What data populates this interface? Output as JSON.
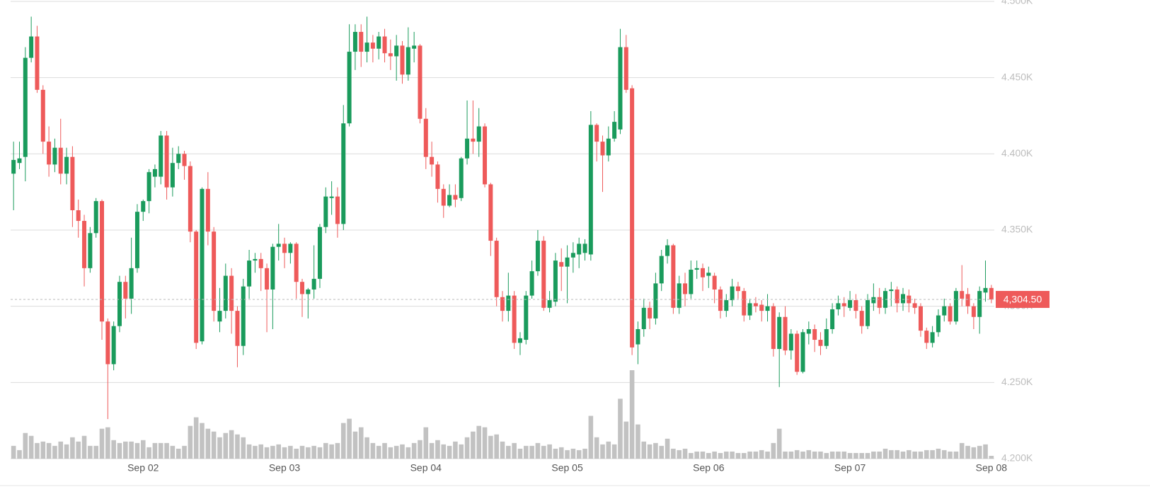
{
  "chart_data": {
    "type": "candlestick",
    "categories": [
      null,
      null,
      null,
      null,
      null,
      null,
      null,
      null,
      null,
      null,
      null,
      null,
      null,
      null,
      null,
      null,
      null,
      null,
      null,
      null,
      null,
      null,
      "Sep 02",
      null,
      null,
      null,
      null,
      null,
      null,
      null,
      null,
      null,
      null,
      null,
      null,
      null,
      null,
      null,
      null,
      null,
      null,
      null,
      null,
      null,
      null,
      null,
      "Sep 03",
      null,
      null,
      null,
      null,
      null,
      null,
      null,
      null,
      null,
      null,
      null,
      null,
      null,
      null,
      null,
      null,
      null,
      null,
      null,
      null,
      null,
      null,
      null,
      "Sep 04",
      null,
      null,
      null,
      null,
      null,
      null,
      null,
      null,
      null,
      null,
      null,
      null,
      null,
      null,
      null,
      null,
      null,
      null,
      null,
      null,
      null,
      null,
      null,
      "Sep 05",
      null,
      null,
      null,
      null,
      null,
      null,
      null,
      null,
      null,
      null,
      null,
      null,
      null,
      null,
      null,
      null,
      null,
      null,
      null,
      null,
      null,
      null,
      null,
      "Sep 06",
      null,
      null,
      null,
      null,
      null,
      null,
      null,
      null,
      null,
      null,
      null,
      null,
      null,
      null,
      null,
      null,
      null,
      null,
      null,
      null,
      null,
      null,
      null,
      "Sep 07",
      null,
      null,
      null,
      null,
      null,
      null,
      null,
      null,
      null,
      null,
      null,
      null,
      null,
      null,
      null,
      null,
      null,
      null,
      null,
      null,
      null,
      null,
      null,
      "Sep 08"
    ],
    "open": [
      4387,
      4394,
      4398,
      4463,
      4477,
      4442,
      4408,
      4393,
      4404,
      4387,
      4398,
      4363,
      4356,
      4325,
      4348,
      4369,
      4290,
      4262,
      4287,
      4316,
      4305,
      4325,
      4362,
      4369,
      4385,
      4385,
      4412,
      4378,
      4394,
      4400,
      4392,
      4349,
      4277,
      4377,
      4349,
      4290,
      4297,
      4320,
      4297,
      4274,
      4313,
      4330,
      4331,
      4325,
      4311,
      4339,
      4341,
      4335,
      4341,
      4316,
      4308,
      4311,
      4318,
      4352,
      4371,
      4372,
      4354,
      4420,
      4467,
      4480,
      4467,
      4473,
      4469,
      4477,
      4466,
      4464,
      4471,
      4452,
      4469,
      4471,
      4423,
      4398,
      4393,
      4377,
      4366,
      4373,
      4371,
      4397,
      4410,
      4408,
      4418,
      4380,
      4343,
      4306,
      4297,
      4307,
      4276,
      4278,
      4307,
      4323,
      4343,
      4299,
      4303,
      4329,
      4326,
      4332,
      4334,
      4335,
      4334,
      4419,
      4408,
      4399,
      4410,
      4416,
      4470,
      4443,
      4275,
      4285,
      4299,
      4292,
      4315,
      4333,
      4340,
      4299,
      4315,
      4308,
      4324,
      4325,
      4320,
      4320,
      4311,
      4297,
      4304,
      4313,
      4310,
      4294,
      4302,
      4301,
      4297,
      4300,
      4272,
      4293,
      4271,
      4282,
      4257,
      4282,
      4285,
      4278,
      4274,
      4285,
      4298,
      4302,
      4299,
      4304,
      4297,
      4287,
      4302,
      4306,
      4299,
      4310,
      4311,
      4302,
      4307,
      4302,
      4300,
      4284,
      4276,
      4283,
      4294,
      4300,
      4290,
      4310,
      4308,
      4300,
      4293,
      4309,
      4312
    ],
    "high": [
      4408,
      4408,
      4470,
      4490,
      4484,
      4445,
      4418,
      4410,
      4423,
      4404,
      4405,
      4370,
      4360,
      4352,
      4371,
      4370,
      4292,
      4290,
      4320,
      4320,
      4345,
      4367,
      4370,
      4390,
      4393,
      4415,
      4415,
      4404,
      4405,
      4402,
      4395,
      4350,
      4378,
      4388,
      4352,
      4312,
      4328,
      4325,
      4300,
      4318,
      4337,
      4335,
      4335,
      4328,
      4341,
      4354,
      4345,
      4342,
      4342,
      4318,
      4312,
      4340,
      4354,
      4378,
      4382,
      4378,
      4432,
      4485,
      4485,
      4485,
      4490,
      4478,
      4480,
      4482,
      4475,
      4478,
      4474,
      4483,
      4480,
      4472,
      4430,
      4408,
      4395,
      4380,
      4380,
      4380,
      4398,
      4435,
      4435,
      4430,
      4420,
      4381,
      4345,
      4310,
      4322,
      4310,
      4283,
      4310,
      4330,
      4350,
      4346,
      4310,
      4335,
      4338,
      4340,
      4342,
      4345,
      4344,
      4428,
      4420,
      4412,
      4418,
      4428,
      4482,
      4478,
      4445,
      4290,
      4305,
      4303,
      4322,
      4337,
      4344,
      4341,
      4320,
      4322,
      4330,
      4330,
      4328,
      4326,
      4322,
      4313,
      4308,
      4318,
      4316,
      4312,
      4305,
      4306,
      4304,
      4308,
      4302,
      4296,
      4300,
      4285,
      4284,
      4285,
      4290,
      4288,
      4283,
      4292,
      4302,
      4307,
      4306,
      4310,
      4308,
      4300,
      4308,
      4315,
      4312,
      4312,
      4316,
      4313,
      4312,
      4311,
      4305,
      4302,
      4286,
      4287,
      4298,
      4305,
      4302,
      4312,
      4327,
      4312,
      4302,
      4313,
      4330,
      4314
    ],
    "low": [
      4363,
      4390,
      4382,
      4460,
      4440,
      4400,
      4385,
      4388,
      4380,
      4380,
      4352,
      4345,
      4313,
      4322,
      4345,
      4278,
      4226,
      4258,
      4283,
      4292,
      4295,
      4322,
      4356,
      4361,
      4378,
      4380,
      4370,
      4372,
      4390,
      4383,
      4342,
      4272,
      4275,
      4340,
      4290,
      4283,
      4292,
      4282,
      4260,
      4268,
      4305,
      4322,
      4310,
      4283,
      4285,
      4330,
      4325,
      4328,
      4305,
      4293,
      4292,
      4305,
      4312,
      4348,
      4360,
      4345,
      4350,
      4418,
      4455,
      4457,
      4460,
      4460,
      4462,
      4460,
      4455,
      4448,
      4446,
      4448,
      4460,
      4420,
      4390,
      4385,
      4368,
      4358,
      4365,
      4365,
      4369,
      4393,
      4400,
      4398,
      4378,
      4333,
      4300,
      4290,
      4290,
      4272,
      4268,
      4275,
      4305,
      4320,
      4297,
      4296,
      4300,
      4310,
      4302,
      4322,
      4325,
      4330,
      4330,
      4395,
      4375,
      4395,
      4408,
      4413,
      4440,
      4268,
      4262,
      4280,
      4285,
      4288,
      4310,
      4328,
      4295,
      4295,
      4300,
      4305,
      4318,
      4310,
      4312,
      4302,
      4292,
      4293,
      4300,
      4305,
      4290,
      4291,
      4296,
      4290,
      4290,
      4267,
      4247,
      4268,
      4265,
      4255,
      4256,
      4275,
      4270,
      4268,
      4272,
      4282,
      4294,
      4293,
      4297,
      4292,
      4282,
      4285,
      4297,
      4295,
      4295,
      4300,
      4296,
      4297,
      4296,
      4295,
      4280,
      4272,
      4273,
      4280,
      4290,
      4288,
      4288,
      4300,
      4295,
      4285,
      4282,
      4303,
      4302
    ],
    "close": [
      4396,
      4397,
      4463,
      4477,
      4442,
      4408,
      4393,
      4404,
      4387,
      4398,
      4363,
      4356,
      4325,
      4348,
      4369,
      4290,
      4262,
      4287,
      4316,
      4305,
      4325,
      4362,
      4369,
      4388,
      4390,
      4412,
      4378,
      4394,
      4400,
      4392,
      4349,
      4276,
      4377,
      4349,
      4297,
      4297,
      4320,
      4297,
      4274,
      4313,
      4330,
      4331,
      4325,
      4311,
      4339,
      4341,
      4335,
      4341,
      4316,
      4308,
      4311,
      4318,
      4352,
      4372,
      4372,
      4354,
      4420,
      4467,
      4480,
      4467,
      4473,
      4469,
      4477,
      4466,
      4464,
      4471,
      4452,
      4470,
      4471,
      4423,
      4398,
      4393,
      4377,
      4366,
      4373,
      4370,
      4397,
      4410,
      4408,
      4418,
      4380,
      4343,
      4306,
      4297,
      4307,
      4276,
      4279,
      4307,
      4323,
      4343,
      4299,
      4304,
      4330,
      4326,
      4332,
      4335,
      4341,
      4341,
      4419,
      4408,
      4399,
      4410,
      4421,
      4470,
      4442,
      4273,
      4285,
      4299,
      4292,
      4315,
      4333,
      4340,
      4299,
      4315,
      4308,
      4324,
      4325,
      4319,
      4322,
      4311,
      4297,
      4304,
      4313,
      4310,
      4294,
      4302,
      4300,
      4297,
      4300,
      4272,
      4293,
      4271,
      4282,
      4257,
      4283,
      4285,
      4278,
      4274,
      4285,
      4298,
      4302,
      4300,
      4304,
      4297,
      4287,
      4304,
      4306,
      4299,
      4310,
      4311,
      4302,
      4308,
      4302,
      4299,
      4284,
      4276,
      4283,
      4294,
      4300,
      4290,
      4310,
      4305,
      4300,
      4293,
      4310,
      4312,
      4304.5
    ],
    "volume": [
      18,
      12,
      36,
      32,
      22,
      24,
      22,
      18,
      24,
      20,
      30,
      24,
      32,
      18,
      18,
      42,
      44,
      26,
      22,
      24,
      24,
      22,
      26,
      16,
      22,
      22,
      22,
      18,
      14,
      18,
      46,
      58,
      50,
      42,
      38,
      30,
      36,
      40,
      34,
      30,
      20,
      18,
      20,
      16,
      18,
      20,
      16,
      18,
      14,
      18,
      16,
      18,
      16,
      22,
      20,
      22,
      50,
      56,
      38,
      44,
      30,
      22,
      18,
      22,
      16,
      18,
      20,
      16,
      22,
      26,
      44,
      22,
      26,
      20,
      18,
      24,
      20,
      30,
      38,
      46,
      44,
      32,
      34,
      24,
      18,
      22,
      14,
      18,
      18,
      22,
      18,
      20,
      14,
      16,
      12,
      14,
      12,
      14,
      60,
      30,
      20,
      24,
      20,
      84,
      52,
      124,
      48,
      24,
      20,
      22,
      18,
      28,
      14,
      12,
      14,
      8,
      10,
      10,
      8,
      10,
      8,
      10,
      10,
      8,
      8,
      10,
      10,
      12,
      10,
      22,
      42,
      10,
      10,
      12,
      10,
      12,
      10,
      10,
      8,
      10,
      10,
      10,
      8,
      8,
      8,
      8,
      10,
      10,
      14,
      12,
      12,
      10,
      12,
      10,
      10,
      12,
      12,
      14,
      12,
      10,
      10,
      22,
      18,
      16,
      18,
      20,
      4
    ],
    "up_color": "#1a9b5c",
    "down_color": "#ee5a5a",
    "volume_color": "#c2c2c2",
    "ylim": [
      4200,
      4500
    ],
    "yticks": [
      {
        "value": 4200,
        "label": "4.200K"
      },
      {
        "value": 4250,
        "label": "4.250K"
      },
      {
        "value": 4300,
        "label": "4.300K"
      },
      {
        "value": 4350,
        "label": "4.350K"
      },
      {
        "value": 4400,
        "label": "4.400K"
      },
      {
        "value": 4450,
        "label": "4.450K"
      },
      {
        "value": 4500,
        "label": "4.500K"
      }
    ],
    "grid": true,
    "last_price": {
      "value": 4304.5,
      "label": "4,304.50"
    }
  }
}
